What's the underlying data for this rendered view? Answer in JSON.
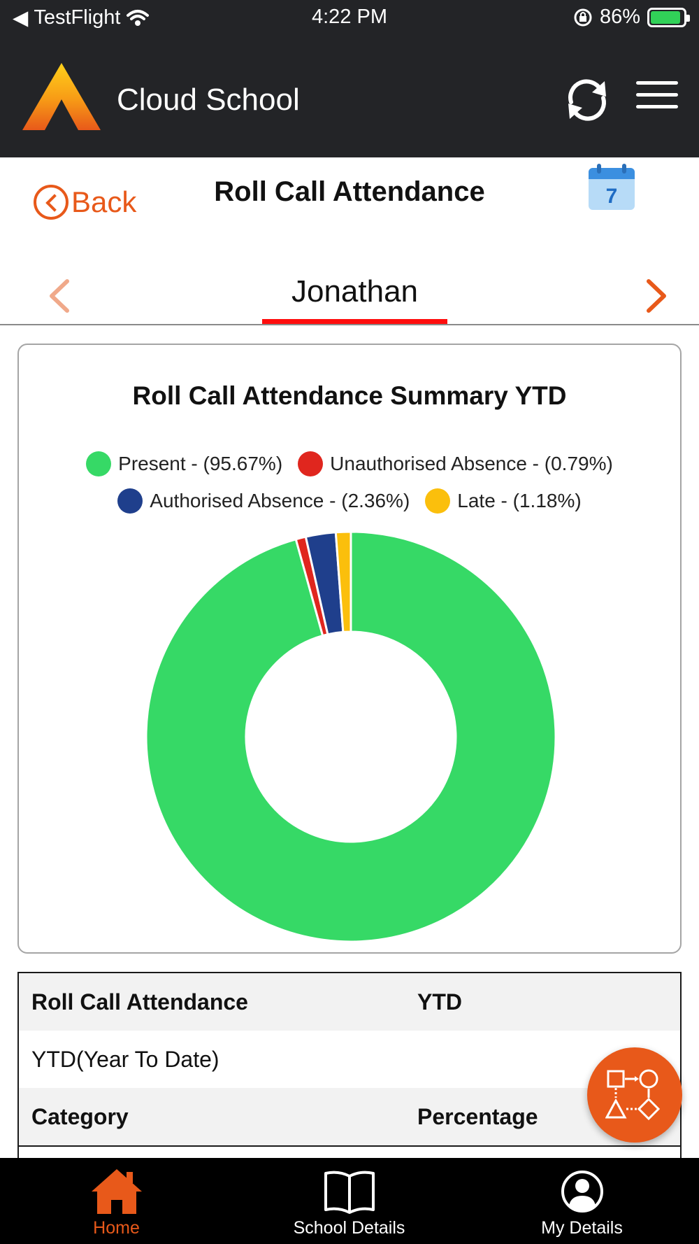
{
  "status_bar": {
    "back_app": "TestFlight",
    "time": "4:22 PM",
    "battery": "86%"
  },
  "header": {
    "app_title": "Cloud School"
  },
  "title_bar": {
    "back_label": "Back",
    "page_title": "Roll Call Attendance",
    "calendar_day": "7"
  },
  "student": {
    "name": "Jonathan"
  },
  "colors": {
    "present": "#36d966",
    "unauthorised": "#e0261e",
    "authorised": "#1f3f8c",
    "late": "#fbbf0c",
    "accent": "#e8591a"
  },
  "chart_data": {
    "type": "pie",
    "title": "Roll Call Attendance Summary YTD",
    "legend_position": "top",
    "series": [
      {
        "name": "Present",
        "label": "Present - (95.67%)",
        "value": 95.67,
        "color": "#36d966"
      },
      {
        "name": "Unauthorised Absence",
        "label": "Unauthorised Absence - (0.79%)",
        "value": 0.79,
        "color": "#e0261e"
      },
      {
        "name": "Authorised Absence",
        "label": "Authorised Absence - (2.36%)",
        "value": 2.36,
        "color": "#1f3f8c"
      },
      {
        "name": "Late",
        "label": "Late - (1.18%)",
        "value": 1.18,
        "color": "#fbbf0c"
      }
    ]
  },
  "table": {
    "header": {
      "col1": "Roll Call Attendance",
      "col2": "YTD"
    },
    "period_row": {
      "col1": "YTD(Year To Date)",
      "col2": ""
    },
    "sub_header": {
      "col1": "Category",
      "col2": "Percentage"
    }
  },
  "bottom_nav": {
    "items": [
      {
        "label": "Home",
        "icon": "home-icon",
        "active": true
      },
      {
        "label": "School Details",
        "icon": "book-icon",
        "active": false
      },
      {
        "label": "My Details",
        "icon": "user-circle-icon",
        "active": false
      }
    ]
  }
}
